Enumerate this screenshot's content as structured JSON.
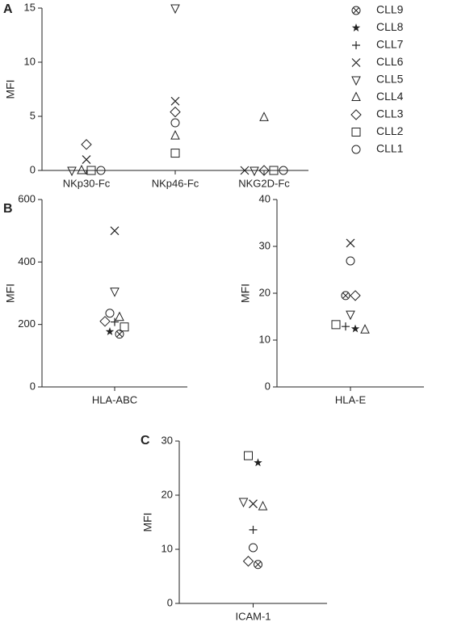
{
  "legend": [
    {
      "name": "CLL9",
      "marker": "circle-x"
    },
    {
      "name": "CLL8",
      "marker": "star"
    },
    {
      "name": "CLL7",
      "marker": "plus"
    },
    {
      "name": "CLL6",
      "marker": "x"
    },
    {
      "name": "CLL5",
      "marker": "triangle-down"
    },
    {
      "name": "CLL4",
      "marker": "triangle-up"
    },
    {
      "name": "CLL3",
      "marker": "diamond"
    },
    {
      "name": "CLL2",
      "marker": "square"
    },
    {
      "name": "CLL1",
      "marker": "circle"
    }
  ],
  "chart_data": [
    {
      "type": "scatter",
      "panel_label": "A",
      "ylabel": "MFI",
      "categories": [
        "NKp30-Fc",
        "NKp46-Fc",
        "NKG2D-Fc"
      ],
      "ylim": [
        0,
        15
      ],
      "yticks": [
        0,
        5,
        10,
        15
      ],
      "series": [
        {
          "values": [
            null,
            null,
            null
          ]
        },
        {
          "values": [
            null,
            null,
            null
          ]
        },
        {
          "values": [
            null,
            null,
            null
          ]
        },
        {
          "values": [
            1.0,
            6.4,
            0
          ]
        },
        {
          "values": [
            0,
            15.0,
            0
          ]
        },
        {
          "values": [
            0,
            3.2,
            4.9
          ]
        },
        {
          "values": [
            2.4,
            5.4,
            0
          ]
        },
        {
          "values": [
            0,
            1.6,
            0
          ]
        },
        {
          "values": [
            0,
            4.4,
            0
          ]
        }
      ]
    },
    {
      "type": "scatter",
      "panel_label": "B",
      "ylabel": "MFI",
      "categories": [
        "HLA-ABC"
      ],
      "ylim": [
        0,
        600
      ],
      "yticks": [
        0,
        200,
        400,
        600
      ],
      "series": [
        {
          "values": [
            169
          ]
        },
        {
          "values": [
            177
          ]
        },
        {
          "values": [
            208
          ]
        },
        {
          "values": [
            500
          ]
        },
        {
          "values": [
            306
          ]
        },
        {
          "values": [
            223
          ]
        },
        {
          "values": [
            210
          ]
        },
        {
          "values": [
            192
          ]
        },
        {
          "values": [
            236
          ]
        }
      ]
    },
    {
      "type": "scatter",
      "ylabel": "MFI",
      "categories": [
        "HLA-E"
      ],
      "ylim": [
        0,
        40
      ],
      "yticks": [
        0,
        10,
        20,
        30,
        40
      ],
      "series": [
        {
          "values": [
            19.5
          ]
        },
        {
          "values": [
            12.4
          ]
        },
        {
          "values": [
            12.9
          ]
        },
        {
          "values": [
            30.7
          ]
        },
        {
          "values": [
            15.5
          ]
        },
        {
          "values": [
            12.2
          ]
        },
        {
          "values": [
            19.5
          ]
        },
        {
          "values": [
            13.3
          ]
        },
        {
          "values": [
            26.9
          ]
        }
      ]
    },
    {
      "type": "scatter",
      "panel_label": "C",
      "ylabel": "MFI",
      "categories": [
        "ICAM-1"
      ],
      "ylim": [
        0,
        30
      ],
      "yticks": [
        0,
        10,
        20,
        30
      ],
      "series": [
        {
          "values": [
            7.2
          ]
        },
        {
          "values": [
            26.0
          ]
        },
        {
          "values": [
            13.6
          ]
        },
        {
          "values": [
            18.4
          ]
        },
        {
          "values": [
            18.8
          ]
        },
        {
          "values": [
            17.9
          ]
        },
        {
          "values": [
            7.8
          ]
        },
        {
          "values": [
            27.3
          ]
        },
        {
          "values": [
            10.3
          ]
        }
      ]
    }
  ]
}
